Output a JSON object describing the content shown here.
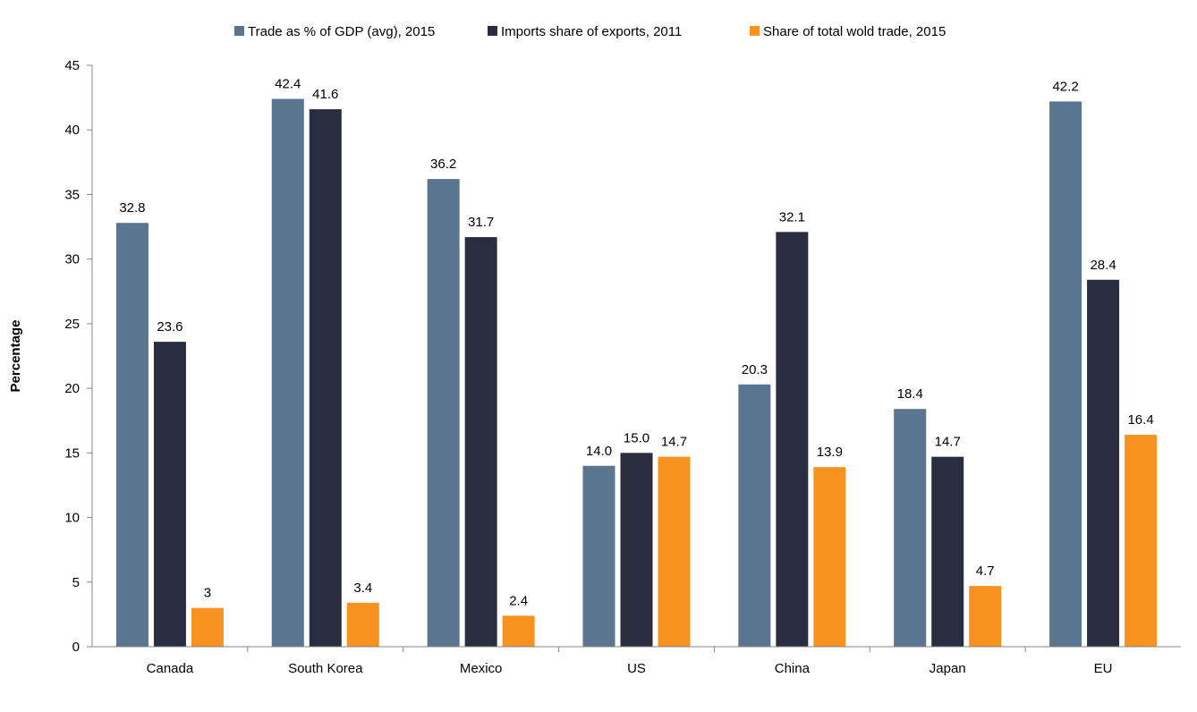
{
  "chart_data": {
    "type": "bar",
    "categories": [
      "Canada",
      "South Korea",
      "Mexico",
      "US",
      "China",
      "Japan",
      "EU"
    ],
    "series": [
      {
        "name": "Trade as % of GDP (avg), 2015",
        "color": "#5a7590",
        "values": [
          32.8,
          42.4,
          36.2,
          14.0,
          20.3,
          18.4,
          42.2
        ],
        "labels": [
          "32.8",
          "42.4",
          "36.2",
          "14.0",
          "20.3",
          "18.4",
          "42.2"
        ]
      },
      {
        "name": "Imports share of exports, 2011",
        "color": "#2a2d40",
        "values": [
          23.6,
          41.6,
          31.7,
          15.0,
          32.1,
          14.7,
          28.4
        ],
        "labels": [
          "23.6",
          "41.6",
          "31.7",
          "15.0",
          "32.1",
          "14.7",
          "28.4"
        ]
      },
      {
        "name": "Share of total wold trade, 2015",
        "color": "#f7931e",
        "values": [
          3,
          3.4,
          2.4,
          14.7,
          13.9,
          4.7,
          16.4
        ],
        "labels": [
          "3",
          "3.4",
          "2.4",
          "14.7",
          "13.9",
          "4.7",
          "16.4"
        ]
      }
    ],
    "title": "",
    "xlabel": "",
    "ylabel": "Percentage",
    "ylim": [
      0,
      45
    ],
    "yticks": [
      "0",
      "5",
      "10",
      "15",
      "20",
      "25",
      "30",
      "35",
      "40",
      "45"
    ],
    "grid": false,
    "legend_position": "top-center"
  }
}
